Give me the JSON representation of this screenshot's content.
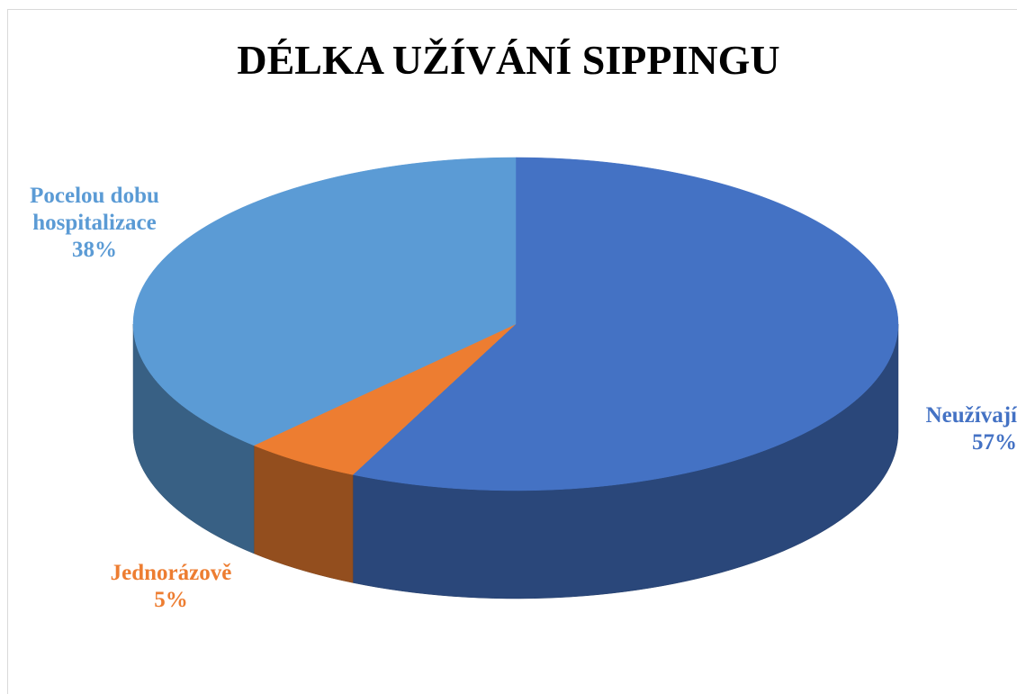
{
  "chart_data": {
    "type": "pie",
    "title": "DÉLKA UŽÍVÁNÍ SIPPINGU",
    "categories": [
      "Neužívají",
      "Jednorázově",
      "Pocelou dobu hospitalizace"
    ],
    "values": [
      57,
      5,
      38
    ],
    "value_labels": [
      "57%",
      "5%",
      "38%"
    ],
    "colors": [
      "#4472c4",
      "#ed7d31",
      "#5b9bd5"
    ]
  }
}
